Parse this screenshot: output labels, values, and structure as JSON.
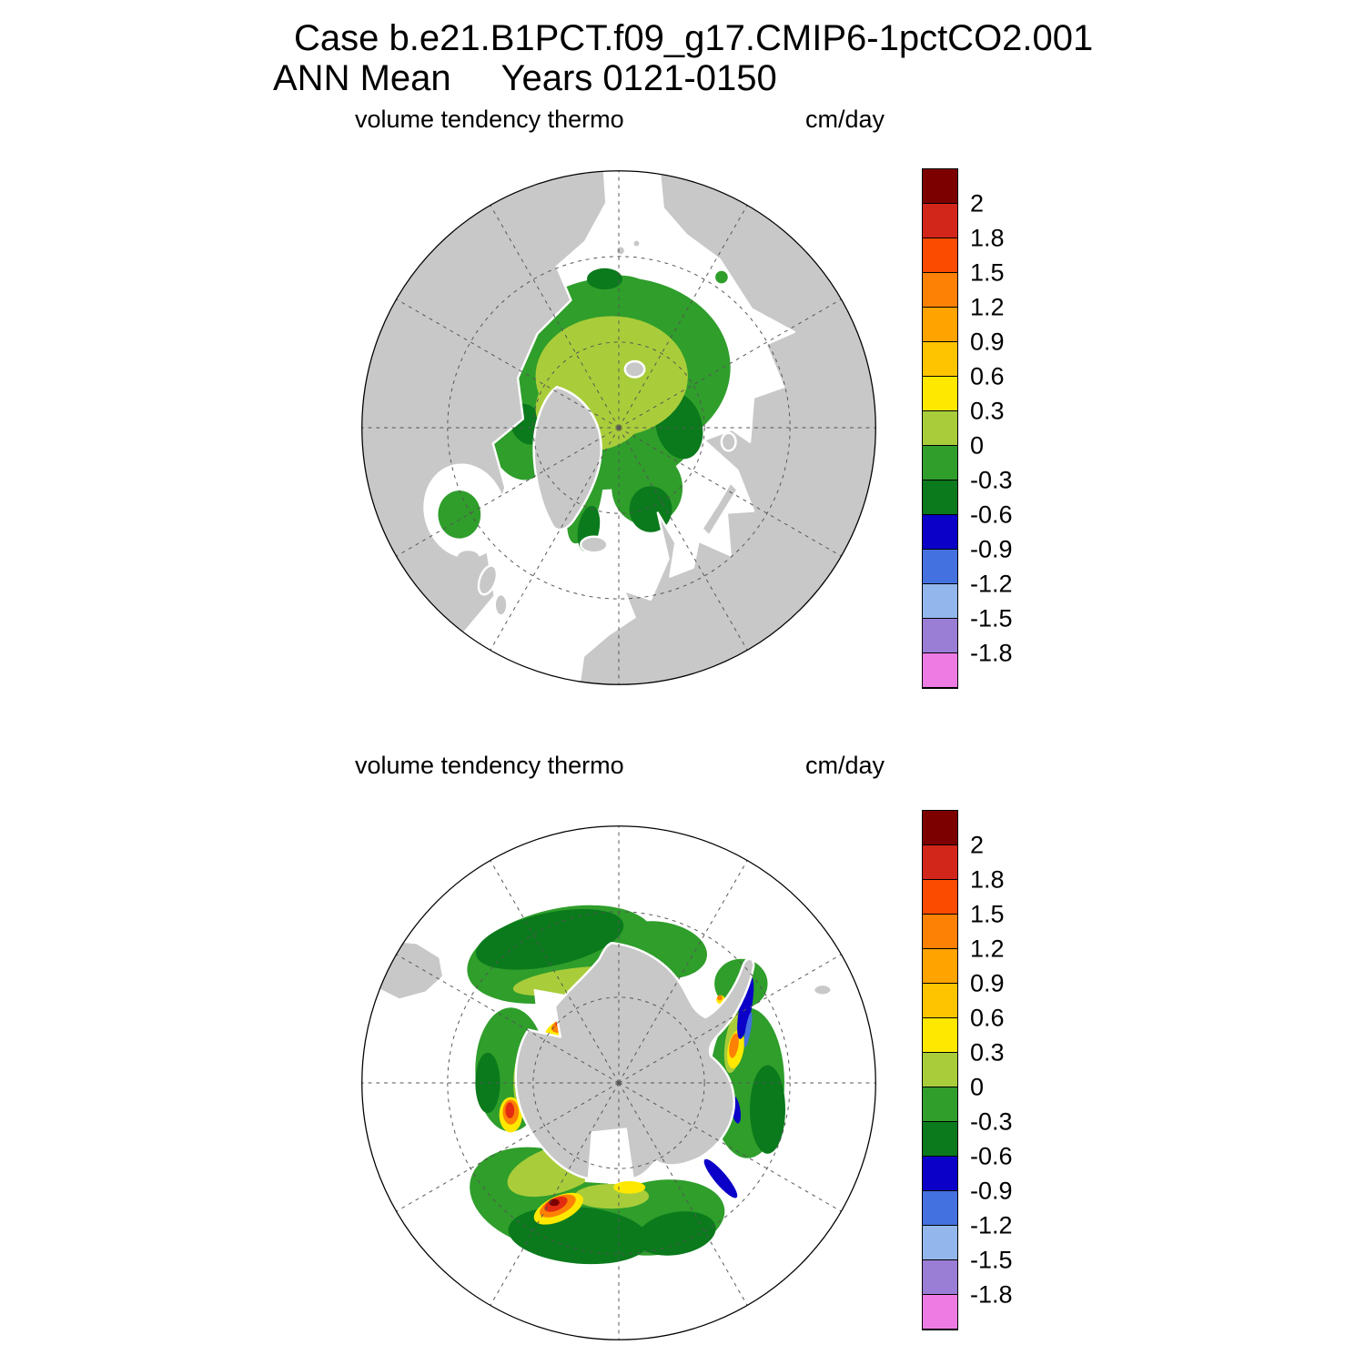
{
  "header": {
    "title_line1": "Case b.e21.B1PCT.f09_g17.CMIP6-1pctCO2.001",
    "title_line2": "ANN Mean     Years 0121-0150"
  },
  "panels": [
    {
      "id": "arctic",
      "label": "volume tendency thermo",
      "units": "cm/day"
    },
    {
      "id": "antarctic",
      "label": "volume tendency thermo",
      "units": "cm/day"
    }
  ],
  "colorbar": {
    "tick_labels": [
      "2",
      "1.8",
      "1.5",
      "1.2",
      "0.9",
      "0.6",
      "0.3",
      "0",
      "-0.3",
      "-0.6",
      "-0.9",
      "-1.2",
      "-1.5",
      "-1.8"
    ],
    "colors": [
      "#7d0000",
      "#d2261a",
      "#fa4b00",
      "#fd8104",
      "#ffa300",
      "#ffc400",
      "#ffe800",
      "#a9cd3a",
      "#2f9e2b",
      "#0a7a1c",
      "#0a00c8",
      "#4371e0",
      "#93b7ec",
      "#9a7ed6",
      "#ee7be4"
    ]
  },
  "palette": {
    "land": "#c8c8c8",
    "ocean": "#ffffff",
    "green": "#2f9e2b",
    "dark_green": "#0a7a1c",
    "yellow_green": "#a9cd3a",
    "yellow": "#ffe800",
    "orange": "#fd8104",
    "red": "#e32b12",
    "dark_red": "#7d0000",
    "dark_blue": "#0a00c8",
    "medium_blue": "#4371e0"
  },
  "chart_data": {
    "type": "heatmap",
    "title": "Case b.e21.B1PCT.f09_g17.CMIP6-1pctCO2.001",
    "subtitle": "ANN Mean Years 0121-0150",
    "variable": "volume tendency thermo",
    "units": "cm/day",
    "projection": "polar stereographic",
    "panels": [
      "Northern Hemisphere (Arctic)",
      "Southern Hemisphere (Antarctic)"
    ],
    "legend_position": "right",
    "level_boundaries_top_to_bottom": [
      2,
      1.8,
      1.5,
      1.2,
      0.9,
      0.6,
      0.3,
      0,
      -0.3,
      -0.6,
      -0.9,
      -1.2,
      -1.5,
      -1.8
    ],
    "level_colors_top_to_bottom": [
      "#7d0000",
      "#d2261a",
      "#fa4b00",
      "#fd8104",
      "#ffa300",
      "#ffc400",
      "#ffe800",
      "#a9cd3a",
      "#2f9e2b",
      "#0a7a1c",
      "#0a00c8",
      "#4371e0",
      "#93b7ec",
      "#9a7ed6",
      "#ee7be4"
    ],
    "observations": {
      "arctic": "Central Arctic Ocean pack at 0 to 0.3 cm/day (yellow-green) surrounded by -0.3 to 0 cm/day (green); -0.6 to -0.3 cm/day (dark green) fringes in the Barents, Kara, Chukchi, Baffin Bay and East Greenland waters; small green patch in Hudson Bay.",
      "antarctic": "Circumpolar sea-ice band mostly -0.3 to 0 cm/day with 0 to 0.3 cm/day along inner coastal edge; positive coastal hotspots exceeding 1.5-2 cm/day near the Weddell and Ross coasts; -0.9 to -0.6 cm/day (dark blue) bands east of the Antarctic Peninsula and in the bottom-right sector."
    }
  }
}
